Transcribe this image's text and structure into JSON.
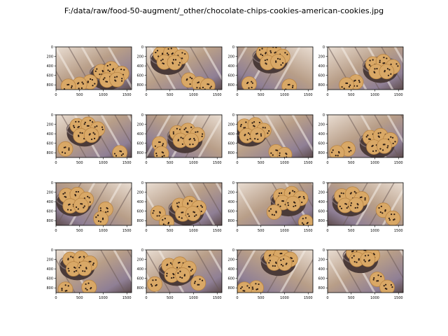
{
  "figure": {
    "title": "F:/data/raw/food-50-augment/_other/chocolate-chips-cookies-american-cookies.jpg"
  },
  "colors": {
    "cookie": "#d9a866",
    "cookie_dark": "#b88444",
    "chip": "#2a1a12",
    "bowl": "#4a3a38",
    "bowl_rim": "#7a6a6a",
    "bg_light": "#e9ddd2",
    "bg_mid": "#b89e88",
    "bg_dark": "#5c4a4a",
    "bg_purple": "#8f7f95"
  },
  "chart_data": {
    "type": "image-grid",
    "rows": 4,
    "cols": 4,
    "axes": {
      "xlim": [
        0,
        1600
      ],
      "ylim": [
        900,
        0
      ],
      "xticks": [
        0,
        500,
        1000,
        1500
      ],
      "yticks": [
        0,
        200,
        400,
        600,
        800
      ]
    },
    "panels": [
      {
        "bowl": [
          1090,
          570
        ],
        "cookies": [
          [
            950,
            520
          ],
          [
            1170,
            460
          ],
          [
            1390,
            560
          ],
          [
            1080,
            700
          ],
          [
            1290,
            690
          ],
          [
            720,
            740
          ],
          [
            500,
            790
          ],
          [
            260,
            830
          ]
        ],
        "flip": false
      },
      {
        "bowl": [
          460,
          250
        ],
        "cookies": [
          [
            300,
            150
          ],
          [
            520,
            120
          ],
          [
            740,
            210
          ],
          [
            380,
            320
          ],
          [
            600,
            330
          ],
          [
            900,
            700
          ],
          [
            1120,
            780
          ],
          [
            1300,
            820
          ]
        ],
        "flip": false
      },
      {
        "bowl": [
          700,
          220
        ],
        "cookies": [
          [
            560,
            120
          ],
          [
            780,
            90
          ],
          [
            960,
            200
          ],
          [
            640,
            330
          ],
          [
            860,
            310
          ],
          [
            250,
            780
          ],
          [
            1100,
            830
          ]
        ],
        "flip": true
      },
      {
        "bowl": [
          1120,
          420
        ],
        "cookies": [
          [
            960,
            360
          ],
          [
            1180,
            310
          ],
          [
            1380,
            420
          ],
          [
            1030,
            520
          ],
          [
            1250,
            520
          ],
          [
            600,
            740
          ],
          [
            400,
            800
          ]
        ],
        "flip": false
      },
      {
        "bowl": [
          600,
          330
        ],
        "cookies": [
          [
            450,
            230
          ],
          [
            680,
            200
          ],
          [
            880,
            300
          ],
          [
            520,
            440
          ],
          [
            750,
            430
          ],
          [
            200,
            720
          ],
          [
            1350,
            800
          ]
        ],
        "flip": false
      },
      {
        "bowl": [
          820,
          470
        ],
        "cookies": [
          [
            650,
            380
          ],
          [
            880,
            330
          ],
          [
            1080,
            420
          ],
          [
            720,
            540
          ],
          [
            950,
            540
          ],
          [
            280,
            610
          ],
          [
            320,
            820
          ]
        ],
        "flip": true
      },
      {
        "bowl": [
          260,
          330
        ],
        "cookies": [
          [
            150,
            240
          ],
          [
            380,
            210
          ],
          [
            560,
            330
          ],
          [
            200,
            440
          ],
          [
            430,
            430
          ],
          [
            820,
            780
          ],
          [
            1000,
            840
          ]
        ],
        "flip": false
      },
      {
        "bowl": [
          1050,
          570
        ],
        "cookies": [
          [
            900,
            480
          ],
          [
            1120,
            440
          ],
          [
            1330,
            530
          ],
          [
            980,
            680
          ],
          [
            1200,
            660
          ],
          [
            430,
            720
          ],
          [
            200,
            800
          ]
        ],
        "flip": false
      },
      {
        "bowl": [
          380,
          370
        ],
        "cookies": [
          [
            220,
            270
          ],
          [
            450,
            250
          ],
          [
            640,
            350
          ],
          [
            300,
            490
          ],
          [
            530,
            480
          ],
          [
            1050,
            560
          ],
          [
            950,
            760
          ]
        ],
        "flip": true
      },
      {
        "bowl": [
          850,
          560
        ],
        "cookies": [
          [
            700,
            480
          ],
          [
            920,
            440
          ],
          [
            1110,
            530
          ],
          [
            770,
            660
          ],
          [
            990,
            650
          ],
          [
            250,
            640
          ],
          [
            430,
            840
          ]
        ],
        "flip": false
      },
      {
        "bowl": [
          1080,
          370
        ],
        "cookies": [
          [
            920,
            280
          ],
          [
            1150,
            230
          ],
          [
            1340,
            330
          ],
          [
            960,
            420
          ],
          [
            1180,
            440
          ],
          [
            780,
            620
          ],
          [
            1450,
            830
          ]
        ],
        "flip": false
      },
      {
        "bowl": [
          470,
          370
        ],
        "cookies": [
          [
            300,
            280
          ],
          [
            530,
            240
          ],
          [
            720,
            340
          ],
          [
            370,
            480
          ],
          [
            600,
            470
          ],
          [
            1180,
            580
          ],
          [
            1380,
            750
          ]
        ],
        "flip": true
      },
      {
        "bowl": [
          450,
          300
        ],
        "cookies": [
          [
            300,
            200
          ],
          [
            530,
            180
          ],
          [
            720,
            280
          ],
          [
            370,
            400
          ],
          [
            600,
            390
          ],
          [
            700,
            790
          ],
          [
            200,
            830
          ]
        ],
        "flip": false
      },
      {
        "bowl": [
          640,
          420
        ],
        "cookies": [
          [
            480,
            330
          ],
          [
            710,
            300
          ],
          [
            900,
            390
          ],
          [
            540,
            530
          ],
          [
            770,
            530
          ],
          [
            180,
            720
          ],
          [
            1100,
            700
          ]
        ],
        "flip": false
      },
      {
        "bowl": [
          870,
          210
        ],
        "cookies": [
          [
            720,
            140
          ],
          [
            930,
            110
          ],
          [
            1120,
            200
          ],
          [
            780,
            280
          ],
          [
            1000,
            280
          ],
          [
            400,
            800
          ],
          [
            150,
            830
          ]
        ],
        "flip": true
      },
      {
        "bowl": [
          700,
          150
        ],
        "cookies": [
          [
            550,
            60
          ],
          [
            780,
            40
          ],
          [
            950,
            110
          ],
          [
            620,
            200
          ],
          [
            850,
            200
          ],
          [
            1050,
            620
          ],
          [
            1260,
            790
          ]
        ],
        "flip": false
      }
    ]
  }
}
